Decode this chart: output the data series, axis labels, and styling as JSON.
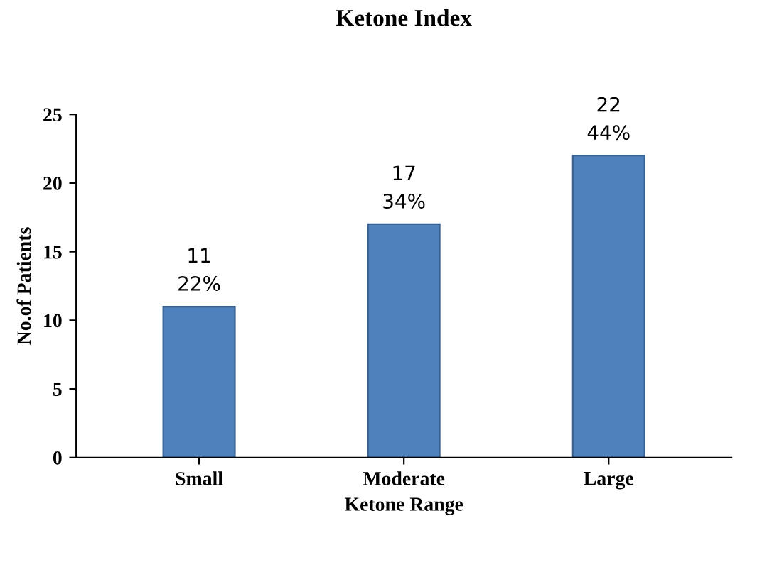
{
  "chart_data": {
    "type": "bar",
    "title": "Ketone Index",
    "xlabel": "Ketone Range",
    "ylabel": "No.of Patients",
    "categories": [
      "Small",
      "Moderate",
      "Large"
    ],
    "values": [
      11,
      17,
      22
    ],
    "value_labels": [
      "11\n22%",
      "17\n34%",
      "22\n44%"
    ],
    "color": "#4f81bd",
    "ylim": [
      0,
      25
    ],
    "yticks": [
      0,
      5,
      10,
      15,
      20,
      25
    ],
    "grid": false,
    "legend": false
  }
}
